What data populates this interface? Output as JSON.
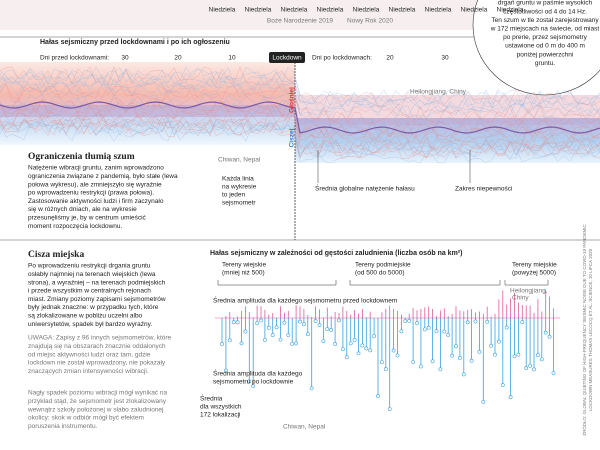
{
  "top_strip": {
    "days": [
      "Niedziela",
      "Niedziela",
      "Niedziela",
      "Niedziela",
      "Niedziela",
      "Niedziela",
      "Niedziela",
      "Niedziela",
      "Niedziela"
    ],
    "holidays": [
      "Boże Narodzenie 2019",
      "Nowy Rok 2020"
    ]
  },
  "intro_circle": {
    "lines": [
      "drgań gruntu w paśmie wysokich",
      "częstotliwości od 4 do 14 Hz.",
      "Ten szum w tle został zarejestrowany",
      "w 172 miejscach na świecie, od miast",
      "po prerie, przez sejsmometry",
      "ustawione od 0 m do 400 m",
      "poniżej powierzchni",
      "gruntu."
    ]
  },
  "panel1": {
    "title": "Hałas sejsmiczny przed lockdownami i po ich ogłoszeniu",
    "before_label": "Dni przed lockdownami:",
    "before_ticks": [
      "30",
      "20",
      "10"
    ],
    "lockdown": "Lockdown",
    "after_label": "Dni po lockdownach:",
    "after_ticks": [
      "20",
      "30"
    ],
    "louder": "Głośniej",
    "quieter": "Ciszej",
    "station_a": "Heilongjiang, Chiny",
    "station_b": "Chiwan, Nepal",
    "each_line": [
      "Każda linia",
      "na wykresie",
      "to jeden",
      "sejsmometr"
    ],
    "mean": "Średnia globalne natężenie hałasu",
    "range": "Zakres niepewności"
  },
  "section1": {
    "heading": "Ograniczenia tłumią szum",
    "lines": [
      "Natężenie wibracji gruntu, zanim wprowadzono",
      "ograniczenia związane z pandemią, było stałe (lewa",
      "połowa wykresu), ale zmniejszyło się wyraźnie",
      "po wprowadzeniu restrykcji (prawa połowa).",
      "Zastosowanie aktywności ludzi i firm zaczynało",
      "się w różnych dniach, ale na wykresie",
      "przesunęliśmy je, by w centrum umieścić",
      "moment rozpoczęcia lockdownu."
    ]
  },
  "section2": {
    "heading": "Cisza miejska",
    "lines": [
      "Po wprowadzeniu restrykcji drgania gruntu",
      "osłabły najmniej na terenach wiejskich (lewa",
      "strona), a wyraźniej – na terenach podmiejskich",
      "i przede wszystkim w centralnych rejonach",
      "miast. Zmiany poziomy zapisami sejsmometrów",
      "były jednak znaczne: w przypadku tych, które",
      "są zlokalizowane w pobliżu uczelni albo",
      "uniwersytetów, spadek był bardzo wyraźny."
    ],
    "note": [
      "UWAGA: Zapisy z 96 innych sejsmometrów, które",
      "znajdują się na obszarach znacznie oddalonych",
      "od miejsc aktywności ludzi oraz tam, gdzie",
      "lockdown nie został wprowadzony, nie pokazały",
      "znaczących zmian intensywności wibracji."
    ],
    "extra": [
      "Nagły spadek poziomu wibracji mógł wynikać na",
      "przykład stąd, że sejsmometr jest zlokalizowany",
      "wewnątrz szkoły położonej w słabo zaludnionej",
      "okolicy: skok w odbiór mógł być efektem",
      "poruszenia instrumentu."
    ]
  },
  "panel2": {
    "title": "Hałas sejsmiczny w zależności od gęstości zaludnienia (liczba osób na km²)",
    "rural": [
      "Tereny wiejskie",
      "(mniej niż 500)"
    ],
    "suburban": [
      "Tereny podmiejskie",
      "(od 500 do 5000)"
    ],
    "urban": [
      "Tereny miejskie",
      "(powyżej 5000)"
    ],
    "station_a": "Heilongjiang,",
    "station_a2": "Chiny",
    "before": "Średnia amplituda dla każdego sejsmometru przed lockdownem",
    "after": [
      "Średnia amplituda dla każdego",
      "sejsmometru po lockdownie"
    ],
    "mean": [
      "Średnia",
      "dla wszystkich",
      "172 lokalizacji"
    ],
    "station_b": "Chiwan, Nepal"
  },
  "credit": [
    "ŹRÓDŁO: GLOBAL QUIETING OF HIGH-FREQUENCY SEISMIC NOISE DUE TO COVID-19 PANDEMIC",
    "LOCKDOWN MEASURES THOMAS LECOCQ ET AL. SCIENCE, 10 LIPCA 2020"
  ]
}
